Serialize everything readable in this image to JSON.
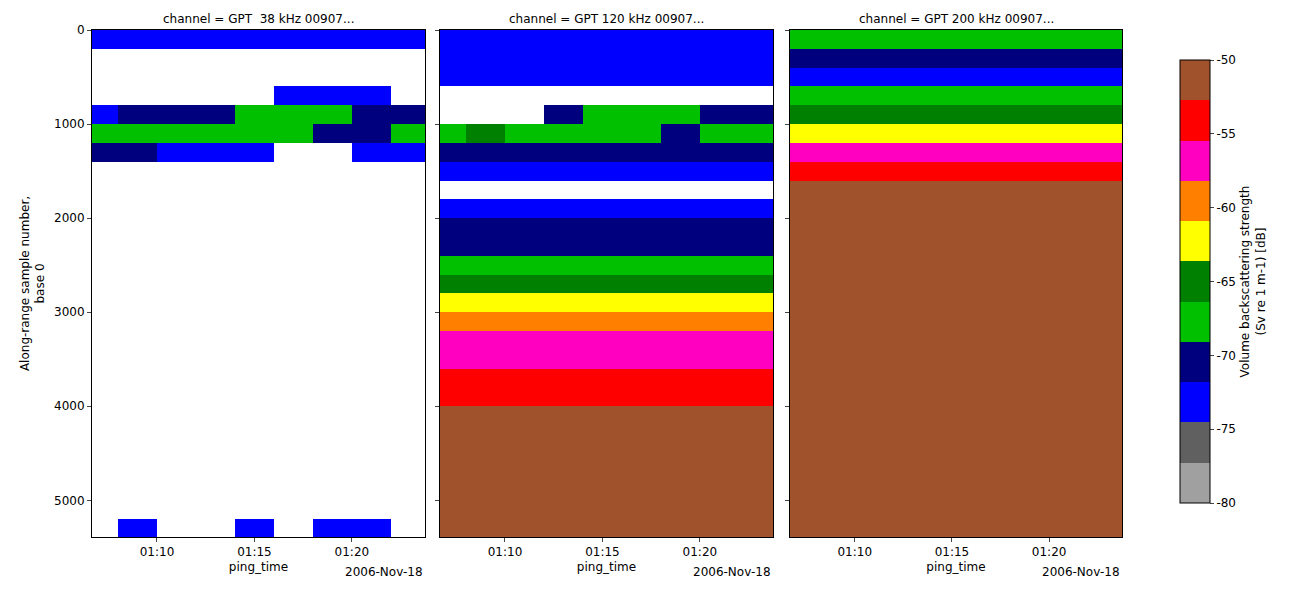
{
  "chart_data": {
    "type": "heatmap",
    "xlabel": "ping_time",
    "ylabel": "Along-range sample number,\nbase 0",
    "date_label": "2006-Nov-18",
    "x": [
      "2006-11-18 01:07:00",
      "2006-11-18 01:09:00",
      "2006-11-18 01:11:00",
      "2006-11-18 01:13:00",
      "2006-11-18 01:15:00",
      "2006-11-18 01:17:00",
      "2006-11-18 01:19:00",
      "2006-11-18 01:21:00",
      "2006-11-18 01:23:00"
    ],
    "y": [
      100,
      300,
      500,
      700,
      900,
      1100,
      1300,
      1500,
      1700,
      1900,
      2100,
      2300,
      2500,
      2700,
      2900,
      3100,
      3300,
      3500,
      3700,
      3900,
      4100,
      4300,
      4500,
      4700,
      4900,
      5100,
      5300
    ],
    "xlim": [
      "2006-11-18 01:06:40",
      "2006-11-18 01:23:45"
    ],
    "xticks": [
      {
        "value": "2006-11-18 01:10:00",
        "label": "01:10"
      },
      {
        "value": "2006-11-18 01:15:00",
        "label": "01:15"
      },
      {
        "value": "2006-11-18 01:20:00",
        "label": "01:20"
      }
    ],
    "ylim": [
      0,
      5390
    ],
    "yticks": [
      0,
      1000,
      2000,
      3000,
      4000,
      5000
    ],
    "zlim": [
      -80,
      -50
    ],
    "zticks": [
      -80,
      -75,
      -70,
      -65,
      -60,
      -55,
      -50
    ],
    "colors": [
      "#a0a0a0",
      "#606060",
      "#0000ff",
      "#00007f",
      "#00c000",
      "#008000",
      "#ffff00",
      "#ff8000",
      "#ff00c0",
      "#ff0000",
      "#a0522d"
    ],
    "colorbar_title": "Volume backscattering strength\n(Sv re 1 m-1) [dB]",
    "panels": [
      {
        "title": "channel = GPT  38 kHz 00907...",
        "cells": [
          [
            -73,
            -73,
            -73,
            -73,
            -73,
            -73,
            -73,
            -73,
            -73
          ],
          [
            null,
            null,
            null,
            null,
            null,
            null,
            null,
            null,
            null
          ],
          [
            null,
            null,
            null,
            null,
            null,
            null,
            null,
            null,
            null
          ],
          [
            null,
            null,
            null,
            null,
            null,
            -73,
            -73,
            -73,
            null
          ],
          [
            -73,
            -70.5,
            -70.5,
            -70.5,
            -68,
            -68,
            -68,
            -70.5,
            -70.5
          ],
          [
            -68,
            -68,
            -68,
            -68,
            -68,
            -68,
            -70.5,
            -70.5,
            -68
          ],
          [
            -70.5,
            -70.5,
            -73,
            -73,
            -73,
            null,
            null,
            -73,
            -73
          ],
          [
            null,
            null,
            null,
            null,
            null,
            null,
            null,
            null,
            null
          ],
          [
            null,
            null,
            null,
            null,
            null,
            null,
            null,
            null,
            null
          ],
          [
            null,
            null,
            null,
            null,
            null,
            null,
            null,
            null,
            null
          ],
          [
            null,
            null,
            null,
            null,
            null,
            null,
            null,
            null,
            null
          ],
          [
            null,
            null,
            null,
            null,
            null,
            null,
            null,
            null,
            null
          ],
          [
            null,
            null,
            null,
            null,
            null,
            null,
            null,
            null,
            null
          ],
          [
            null,
            null,
            null,
            null,
            null,
            null,
            null,
            null,
            null
          ],
          [
            null,
            null,
            null,
            null,
            null,
            null,
            null,
            null,
            null
          ],
          [
            null,
            null,
            null,
            null,
            null,
            null,
            null,
            null,
            null
          ],
          [
            null,
            null,
            null,
            null,
            null,
            null,
            null,
            null,
            null
          ],
          [
            null,
            null,
            null,
            null,
            null,
            null,
            null,
            null,
            null
          ],
          [
            null,
            null,
            null,
            null,
            null,
            null,
            null,
            null,
            null
          ],
          [
            null,
            null,
            null,
            null,
            null,
            null,
            null,
            null,
            null
          ],
          [
            null,
            null,
            null,
            null,
            null,
            null,
            null,
            null,
            null
          ],
          [
            null,
            null,
            null,
            null,
            null,
            null,
            null,
            null,
            null
          ],
          [
            null,
            null,
            null,
            null,
            null,
            null,
            null,
            null,
            null
          ],
          [
            null,
            null,
            null,
            null,
            null,
            null,
            null,
            null,
            null
          ],
          [
            null,
            null,
            null,
            null,
            null,
            null,
            null,
            null,
            null
          ],
          [
            null,
            null,
            null,
            null,
            null,
            null,
            null,
            null,
            null
          ],
          [
            null,
            -73,
            null,
            null,
            -73,
            null,
            -73,
            -73,
            null
          ]
        ]
      },
      {
        "title": "channel = GPT 120 kHz 00907...",
        "cells": [
          [
            -73,
            -73,
            -73,
            -73,
            -73,
            -73,
            -73,
            -73,
            -73
          ],
          [
            -73,
            -73,
            -73,
            -73,
            -73,
            -73,
            -73,
            -73,
            -73
          ],
          [
            -73,
            -73,
            -73,
            -73,
            -73,
            -73,
            -73,
            -73,
            -73
          ],
          [
            null,
            null,
            null,
            null,
            null,
            null,
            null,
            null,
            null
          ],
          [
            null,
            null,
            null,
            -70.5,
            -68,
            -68,
            -68,
            -70.5,
            -70.5
          ],
          [
            -68,
            -65,
            -68,
            -68,
            -68,
            -68,
            -70.5,
            -68,
            -68
          ],
          [
            -70.5,
            -70.5,
            -70.5,
            -70.5,
            -70.5,
            -70.5,
            -70.5,
            -70.5,
            -70.5
          ],
          [
            -73,
            -73,
            -73,
            -73,
            -73,
            -73,
            -73,
            -73,
            -73
          ],
          [
            null,
            null,
            null,
            null,
            null,
            null,
            null,
            null,
            null
          ],
          [
            -73,
            -73,
            -73,
            -73,
            -73,
            -73,
            -73,
            -73,
            -73
          ],
          [
            -70.5,
            -70.5,
            -70.5,
            -70.5,
            -70.5,
            -70.5,
            -70.5,
            -70.5,
            -70.5
          ],
          [
            -70.5,
            -70.5,
            -70.5,
            -70.5,
            -70.5,
            -70.5,
            -70.5,
            -70.5,
            -70.5
          ],
          [
            -68,
            -68,
            -68,
            -68,
            -68,
            -68,
            -68,
            -68,
            -68
          ],
          [
            -65,
            -65,
            -65,
            -65,
            -65,
            -65,
            -65,
            -65,
            -65
          ],
          [
            -62,
            -62,
            -62,
            -62,
            -62,
            -62,
            -62,
            -62,
            -62
          ],
          [
            -59.5,
            -59.5,
            -59.5,
            -59.5,
            -59.5,
            -59.5,
            -59.5,
            -59.5,
            -59.5
          ],
          [
            -57,
            -57,
            -57,
            -57,
            -57,
            -57,
            -57,
            -57,
            -57
          ],
          [
            -57,
            -57,
            -57,
            -57,
            -57,
            -57,
            -57,
            -57,
            -57
          ],
          [
            -54,
            -54,
            -54,
            -54,
            -54,
            -54,
            -54,
            -54,
            -54
          ],
          [
            -54,
            -54,
            -54,
            -54,
            -54,
            -54,
            -54,
            -54,
            -54
          ],
          [
            -51,
            -51,
            -51,
            -51,
            -51,
            -51,
            -51,
            -51,
            -51
          ],
          [
            -51,
            -51,
            -51,
            -51,
            -51,
            -51,
            -51,
            -51,
            -51
          ],
          [
            -51,
            -51,
            -51,
            -51,
            -51,
            -51,
            -51,
            -51,
            -51
          ],
          [
            -51,
            -51,
            -51,
            -51,
            -51,
            -51,
            -51,
            -51,
            -51
          ],
          [
            -51,
            -51,
            -51,
            -51,
            -51,
            -51,
            -51,
            -51,
            -51
          ],
          [
            -51,
            -51,
            -51,
            -51,
            -51,
            -51,
            -51,
            -51,
            -51
          ],
          [
            -51,
            -51,
            -51,
            -51,
            -51,
            -51,
            -51,
            -51,
            -51
          ]
        ]
      },
      {
        "title": "channel = GPT 200 kHz 00907...",
        "cells": [
          [
            -68,
            -68,
            -68,
            -68,
            -68,
            -68,
            -68,
            -68,
            -68
          ],
          [
            -70.5,
            -70.5,
            -70.5,
            -70.5,
            -70.5,
            -70.5,
            -70.5,
            -70.5,
            -70.5
          ],
          [
            -73,
            -73,
            -73,
            -73,
            -73,
            -73,
            -73,
            -73,
            -73
          ],
          [
            -68,
            -68,
            -68,
            -68,
            -68,
            -68,
            -68,
            -68,
            -68
          ],
          [
            -65,
            -65,
            -65,
            -65,
            -65,
            -65,
            -65,
            -65,
            -65
          ],
          [
            -62,
            -62,
            -62,
            -62,
            -62,
            -62,
            -62,
            -62,
            -62
          ],
          [
            -57,
            -57,
            -57,
            -57,
            -57,
            -57,
            -57,
            -57,
            -57
          ],
          [
            -54,
            -54,
            -54,
            -54,
            -54,
            -54,
            -54,
            -54,
            -54
          ],
          [
            -51,
            -51,
            -51,
            -51,
            -51,
            -51,
            -51,
            -51,
            -51
          ],
          [
            -51,
            -51,
            -51,
            -51,
            -51,
            -51,
            -51,
            -51,
            -51
          ],
          [
            -51,
            -51,
            -51,
            -51,
            -51,
            -51,
            -51,
            -51,
            -51
          ],
          [
            -51,
            -51,
            -51,
            -51,
            -51,
            -51,
            -51,
            -51,
            -51
          ],
          [
            -51,
            -51,
            -51,
            -51,
            -51,
            -51,
            -51,
            -51,
            -51
          ],
          [
            -51,
            -51,
            -51,
            -51,
            -51,
            -51,
            -51,
            -51,
            -51
          ],
          [
            -51,
            -51,
            -51,
            -51,
            -51,
            -51,
            -51,
            -51,
            -51
          ],
          [
            -51,
            -51,
            -51,
            -51,
            -51,
            -51,
            -51,
            -51,
            -51
          ],
          [
            -51,
            -51,
            -51,
            -51,
            -51,
            -51,
            -51,
            -51,
            -51
          ],
          [
            -51,
            -51,
            -51,
            -51,
            -51,
            -51,
            -51,
            -51,
            -51
          ],
          [
            -51,
            -51,
            -51,
            -51,
            -51,
            -51,
            -51,
            -51,
            -51
          ],
          [
            -51,
            -51,
            -51,
            -51,
            -51,
            -51,
            -51,
            -51,
            -51
          ],
          [
            -51,
            -51,
            -51,
            -51,
            -51,
            -51,
            -51,
            -51,
            -51
          ],
          [
            -51,
            -51,
            -51,
            -51,
            -51,
            -51,
            -51,
            -51,
            -51
          ],
          [
            -51,
            -51,
            -51,
            -51,
            -51,
            -51,
            -51,
            -51,
            -51
          ],
          [
            -51,
            -51,
            -51,
            -51,
            -51,
            -51,
            -51,
            -51,
            -51
          ],
          [
            -51,
            -51,
            -51,
            -51,
            -51,
            -51,
            -51,
            -51,
            -51
          ],
          [
            -51,
            -51,
            -51,
            -51,
            -51,
            -51,
            -51,
            -51,
            -51
          ],
          [
            -51,
            -51,
            -51,
            -51,
            -51,
            -51,
            -51,
            -51,
            -51
          ]
        ]
      }
    ]
  }
}
